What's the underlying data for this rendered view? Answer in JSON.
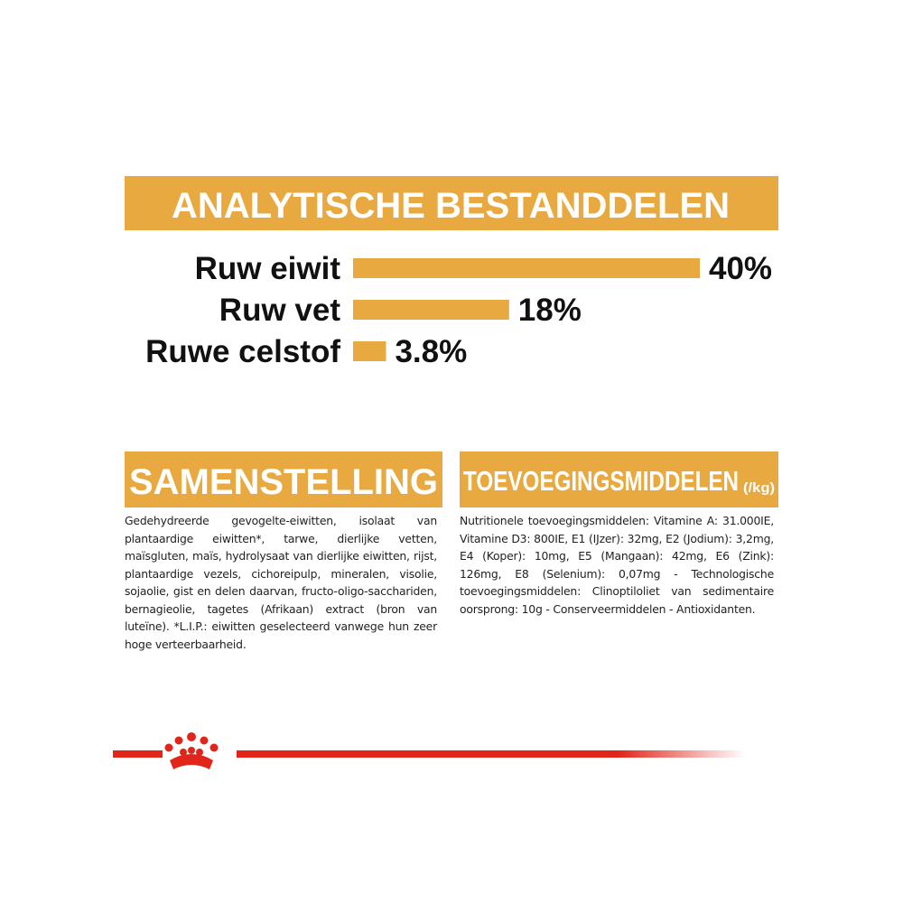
{
  "analysis": {
    "type": "bar",
    "title": "ANALYTISCHE BESTANDDELEN",
    "categories": [
      "Ruw eiwit",
      "Ruw vet",
      "Ruwe celstof"
    ],
    "values": [
      40,
      18,
      3.8
    ],
    "value_labels": [
      "40%",
      "18%",
      "3.8%"
    ],
    "color": "#e8a940"
  },
  "composition": {
    "title": "SAMENSTELLING",
    "text": "Gedehydreerde gevogelte-eiwitten, isolaat van plantaardige eiwitten*, tarwe, dierlijke vetten, maïsgluten, maïs, hydrolysaat van dierlijke eiwitten, rijst, plantaardige vezels, cichoreipulp, mineralen, visolie, sojaolie, gist en delen daarvan, fructo-oligo-sacchariden, bernagieolie, tagetes (Afrikaan) extract (bron van luteïne). *L.I.P.: eiwitten geselecteerd vanwege hun zeer hoge verteerbaarheid."
  },
  "additives": {
    "title": "TOEVOEGINGSMIDDELEN",
    "unit": "(/kg)",
    "text": "Nutritionele toevoegingsmiddelen: Vitamine A: 31.000IE, Vitamine D3: 800IE, E1 (IJzer): 32mg, E2 (Jodium): 3,2mg, E4 (Koper): 10mg, E5 (Mangaan): 42mg, E6 (Zink): 126mg, E8 (Selenium): 0,07mg - Technologische toevoegingsmiddelen: Clinoptiloliet van sedimentaire oorsprong: 10g - Conserveermiddelen - Antioxidanten."
  }
}
